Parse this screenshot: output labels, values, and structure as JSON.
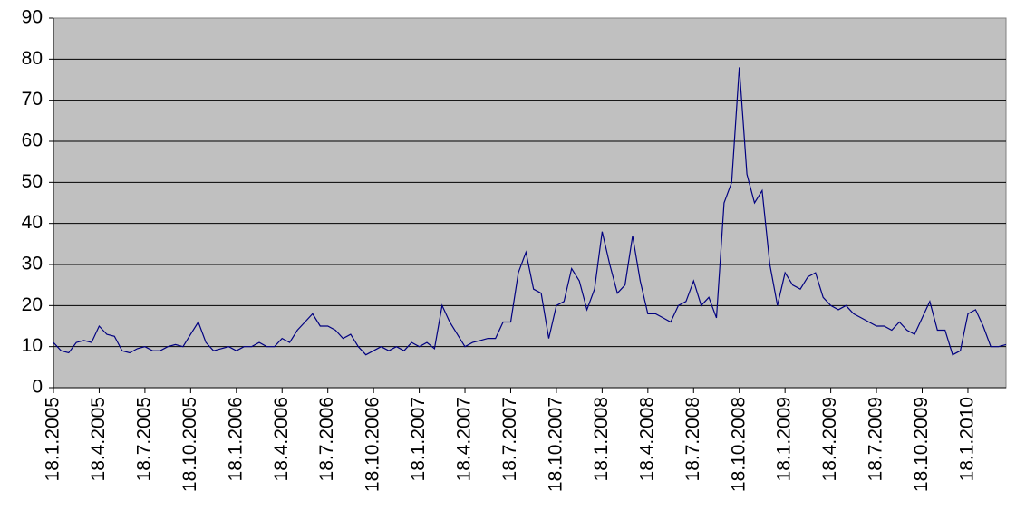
{
  "chart_data": {
    "type": "line",
    "categories": [
      "18.1.2005",
      null,
      null,
      null,
      null,
      null,
      "18.4.2005",
      null,
      null,
      null,
      null,
      null,
      "18.7.2005",
      null,
      null,
      null,
      null,
      null,
      "18.10.2005",
      null,
      null,
      null,
      null,
      null,
      "18.1.2006",
      null,
      null,
      null,
      null,
      null,
      "18.4.2006",
      null,
      null,
      null,
      null,
      null,
      "18.7.2006",
      null,
      null,
      null,
      null,
      null,
      "18.10.2006",
      null,
      null,
      null,
      null,
      null,
      "18.1.2007",
      null,
      null,
      null,
      null,
      null,
      "18.4.2007",
      null,
      null,
      null,
      null,
      null,
      "18.7.2007",
      null,
      null,
      null,
      null,
      null,
      "18.10.2007",
      null,
      null,
      null,
      null,
      null,
      "18.1.2008",
      null,
      null,
      null,
      null,
      null,
      "18.4.2008",
      null,
      null,
      null,
      null,
      null,
      "18.7.2008",
      null,
      null,
      null,
      null,
      null,
      "18.10.2008",
      null,
      null,
      null,
      null,
      null,
      "18.1.2009",
      null,
      null,
      null,
      null,
      null,
      "18.4.2009",
      null,
      null,
      null,
      null,
      null,
      "18.7.2009",
      null,
      null,
      null,
      null,
      null,
      "18.10.2009",
      null,
      null,
      null,
      null,
      null,
      "18.1.2010",
      null,
      null,
      null,
      null,
      null
    ],
    "series": [
      {
        "color": "#000080",
        "values": [
          11,
          9,
          8.5,
          11,
          11.5,
          11,
          15,
          13,
          12.5,
          9,
          8.5,
          9.5,
          10,
          9,
          9,
          10,
          10.5,
          10,
          13,
          16,
          11,
          9,
          9.5,
          10,
          9,
          10,
          10,
          11,
          10,
          10,
          12,
          11,
          14,
          16,
          18,
          15,
          15,
          14,
          12,
          13,
          10,
          8,
          9,
          10,
          9,
          10,
          9,
          11,
          10,
          11,
          9.5,
          20,
          16,
          13,
          10,
          11,
          11.5,
          12,
          12,
          16,
          16,
          28,
          33,
          24,
          23,
          12,
          20,
          21,
          29,
          26,
          19,
          24,
          38,
          30,
          23,
          25,
          37,
          26,
          18,
          18,
          17,
          16,
          20,
          21,
          26,
          20,
          22,
          17,
          45,
          50,
          78,
          52,
          45,
          48,
          30,
          20,
          28,
          25,
          24,
          27,
          28,
          22,
          20,
          19,
          20,
          18,
          17,
          16,
          15,
          15,
          14,
          16,
          14,
          13,
          17,
          21,
          14,
          14,
          8,
          9,
          18,
          19,
          15,
          10,
          10,
          10.5
        ]
      }
    ],
    "ylim": [
      0,
      90
    ],
    "yticks": [
      0,
      10,
      20,
      30,
      40,
      50,
      60,
      70,
      80,
      90
    ],
    "grid": true
  }
}
